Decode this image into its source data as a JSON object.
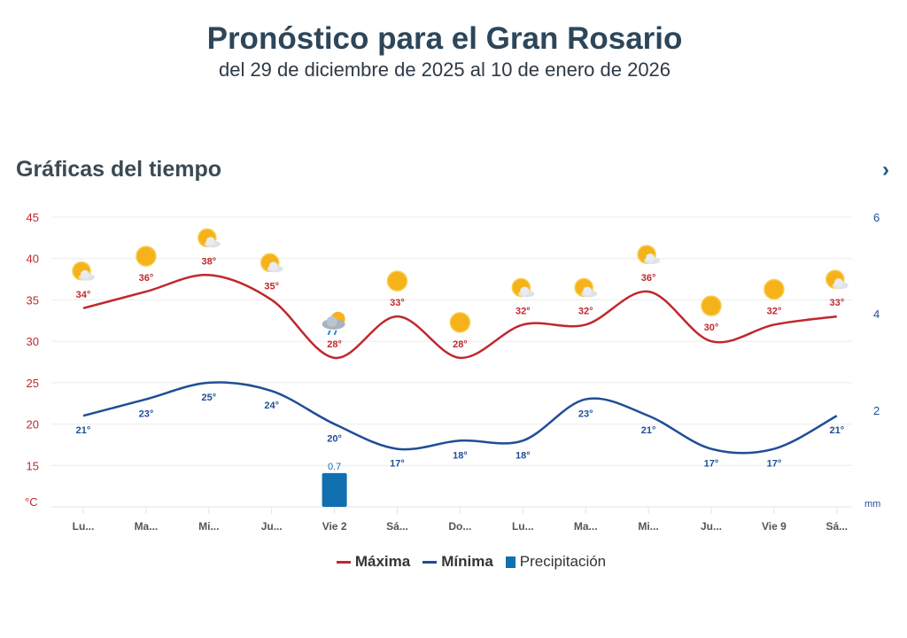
{
  "header": {
    "title": "Pronóstico para el Gran Rosario",
    "subtitle": "del 29 de diciembre de 2025 al 10 de enero de 2026"
  },
  "section": {
    "title": "Gráficas del tiempo",
    "next_icon": "chevron-right-icon"
  },
  "chart_data": {
    "type": "line",
    "categories": [
      "Lu...",
      "Ma...",
      "Mi...",
      "Ju...",
      "Vie 2",
      "Sá...",
      "Do...",
      "Lu...",
      "Ma...",
      "Mi...",
      "Ju...",
      "Vie 9",
      "Sá..."
    ],
    "series": [
      {
        "name": "Máxima",
        "type": "line",
        "axis": "left",
        "color": "#c0282d",
        "values": [
          34,
          36,
          38,
          35,
          28,
          33,
          28,
          32,
          32,
          36,
          30,
          32,
          33
        ]
      },
      {
        "name": "Mínima",
        "type": "line",
        "axis": "left",
        "color": "#1f4e96",
        "values": [
          21,
          23,
          25,
          24,
          20,
          17,
          18,
          18,
          23,
          21,
          17,
          17,
          21
        ]
      },
      {
        "name": "Precipitación",
        "type": "bar",
        "axis": "right",
        "color": "#1070b0",
        "values": [
          0,
          0,
          0,
          0,
          0.7,
          0,
          0,
          0,
          0,
          0,
          0,
          0,
          0
        ],
        "labels": [
          "",
          "",
          "",
          "",
          "0.7",
          "",
          "",
          "",
          "",
          "",
          "",
          "",
          ""
        ]
      }
    ],
    "weather_icons": [
      "partly-cloudy",
      "sunny",
      "partly-cloudy",
      "partly-cloudy",
      "rain",
      "sunny",
      "sunny",
      "partly-cloudy",
      "partly-cloudy",
      "partly-cloudy",
      "sunny",
      "sunny",
      "partly-cloudy"
    ],
    "y_left": {
      "unit": "°C",
      "ticks": [
        15,
        20,
        25,
        30,
        35,
        40,
        45
      ],
      "range": [
        10,
        45
      ],
      "color": "#c0282d"
    },
    "y_right": {
      "unit": "mm",
      "ticks": [
        2,
        4,
        6
      ],
      "range": [
        0,
        6
      ],
      "color": "#1f4e96"
    },
    "grid": true,
    "legend": "bottom"
  }
}
